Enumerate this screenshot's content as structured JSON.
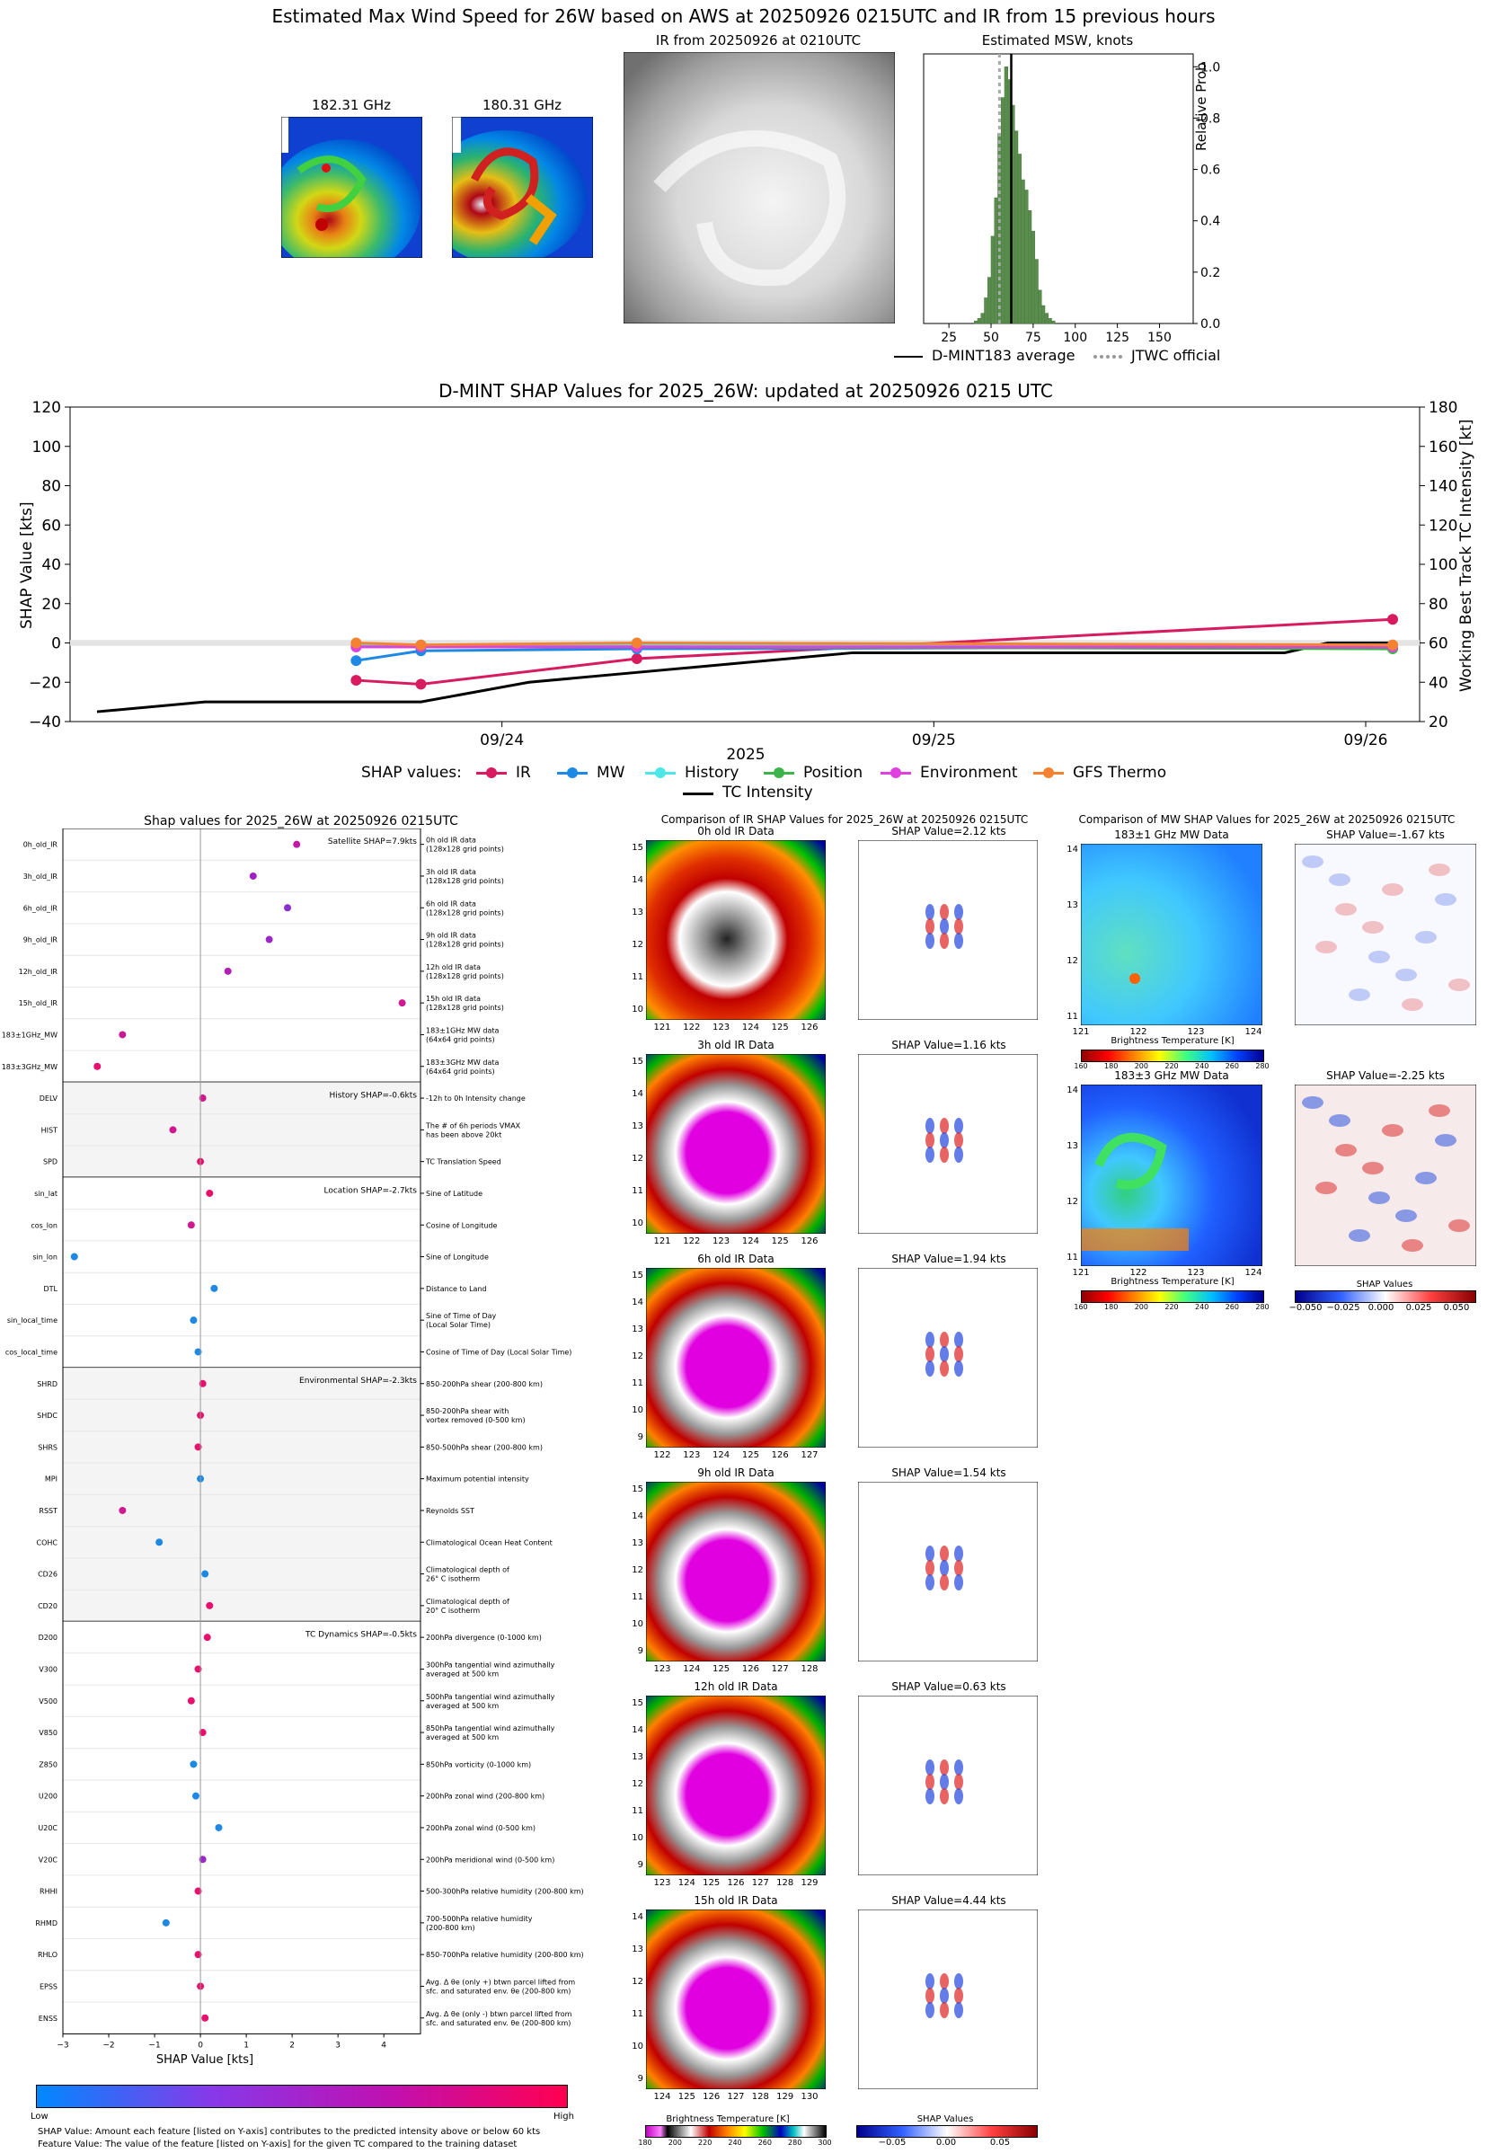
{
  "top": {
    "title": "Estimated Max Wind Speed for 26W based on AWS at 20250926 0215UTC and IR from 15 previous hours",
    "mw1_title": "182.31 GHz",
    "mw2_title": "180.31 GHz",
    "ir_title": "IR from 20250926 at 0210UTC",
    "hist_title": "Estimated MSW, knots",
    "hist_ylabel": "Relative Prob",
    "legend_avg": "D-MINT183 average",
    "legend_jtwc": "JTWC official"
  },
  "msw_hist": {
    "type": "bar",
    "xlim": [
      10,
      170
    ],
    "ylim": [
      0,
      1.05
    ],
    "xticks": [
      "25",
      "50",
      "75",
      "100",
      "125",
      "150"
    ],
    "yticks": [
      "0.0",
      "0.2",
      "0.4",
      "0.6",
      "0.8",
      "1.0"
    ],
    "bins": [
      40,
      42,
      44,
      46,
      48,
      50,
      52,
      54,
      56,
      58,
      60,
      62,
      64,
      66,
      68,
      70,
      72,
      74,
      76,
      78,
      80,
      82,
      84,
      86
    ],
    "values": [
      0.01,
      0.02,
      0.04,
      0.1,
      0.18,
      0.34,
      0.49,
      0.74,
      0.88,
      1.0,
      0.95,
      0.85,
      0.75,
      0.66,
      0.56,
      0.52,
      0.44,
      0.36,
      0.25,
      0.13,
      0.07,
      0.04,
      0.02,
      0.01
    ],
    "avg": 62,
    "jtwc": 55
  },
  "shap_ts": {
    "type": "line",
    "title": "D-MINT SHAP Values for 2025_26W: updated at 20250926 0215 UTC",
    "ylabel": "SHAP Value [kts]",
    "y2label": "Working Best Track TC Intensity [kt]",
    "xlabel": "2025",
    "ylim": [
      -40,
      120
    ],
    "y2lim": [
      20,
      180
    ],
    "yticks": [
      "120",
      "100",
      "80",
      "60",
      "40",
      "20",
      "0",
      "−20",
      "−40"
    ],
    "y2ticks": [
      "180",
      "160",
      "140",
      "120",
      "100",
      "80",
      "60",
      "40",
      "20"
    ],
    "xticks": [
      "09/24",
      "09/25",
      "09/26"
    ],
    "legend_prefix": "SHAP values:",
    "series": [
      {
        "name": "IR",
        "color": "#d81b60",
        "x": [
          0.6,
          0.75,
          1.25,
          3.0
        ],
        "values": [
          -19,
          -21,
          -8,
          12
        ]
      },
      {
        "name": "MW",
        "color": "#1e88e5",
        "x": [
          0.6,
          0.75,
          1.25,
          3.0
        ],
        "values": [
          -9,
          -4,
          -3,
          -2
        ]
      },
      {
        "name": "History",
        "color": "#4ce8e8",
        "x": [
          0.6,
          0.75,
          1.25,
          3.0
        ],
        "values": [
          -1,
          -1,
          -1,
          -1
        ]
      },
      {
        "name": "Position",
        "color": "#3cb44b",
        "x": [
          0.6,
          0.75,
          1.25,
          3.0
        ],
        "values": [
          -2,
          -2,
          -2,
          -3
        ]
      },
      {
        "name": "Environment",
        "color": "#e040e0",
        "x": [
          0.6,
          0.75,
          1.25,
          3.0
        ],
        "values": [
          -2,
          -2,
          -2,
          -2
        ]
      },
      {
        "name": "GFS Thermo",
        "color": "#f58231",
        "x": [
          0.6,
          0.75,
          1.25,
          3.0
        ],
        "values": [
          0,
          -1,
          0,
          -1
        ]
      }
    ],
    "intensity": {
      "name": "TC Intensity",
      "x": [
        0,
        0.25,
        0.5,
        0.75,
        1.0,
        1.25,
        1.5,
        1.75,
        2.0,
        2.25,
        2.5,
        2.75,
        2.85,
        3.0
      ],
      "values": [
        25,
        30,
        30,
        30,
        40,
        45,
        50,
        55,
        55,
        55,
        55,
        55,
        60,
        60
      ]
    }
  },
  "feat": {
    "title": "Shap values for 2025_26W at 20250926 0215UTC",
    "xlabel": "SHAP Value [kts]",
    "xlim": [
      -3,
      4.8
    ],
    "xticks": [
      "−3",
      "−2",
      "−1",
      "0",
      "1",
      "2",
      "3",
      "4"
    ],
    "colorbar_low": "Low",
    "colorbar_high": "High",
    "foot1": "SHAP Value: Amount each feature [listed on Y-axis] contributes to the predicted intensity above or below 60 kts",
    "foot2": "Feature Value: The value of the feature [listed on Y-axis] for the given TC compared to the training dataset",
    "groups": [
      {
        "label": "Satellite SHAP=7.9kts",
        "shade": false,
        "rows": [
          {
            "name": "0h_old_IR",
            "desc": "0h old IR data|(128x128 grid points)",
            "v": 2.1,
            "c": "#c218a8"
          },
          {
            "name": "3h_old_IR",
            "desc": "3h old IR data|(128x128 grid points)",
            "v": 1.15,
            "c": "#a020c0"
          },
          {
            "name": "6h_old_IR",
            "desc": "6h old IR data|(128x128 grid points)",
            "v": 1.9,
            "c": "#8a30cc"
          },
          {
            "name": "9h_old_IR",
            "desc": "9h old IR data|(128x128 grid points)",
            "v": 1.5,
            "c": "#9a28c4"
          },
          {
            "name": "12h_old_IR",
            "desc": "12h old IR data|(128x128 grid points)",
            "v": 0.6,
            "c": "#b020b4"
          },
          {
            "name": "15h_old_IR",
            "desc": "15h old IR data|(128x128 grid points)",
            "v": 4.4,
            "c": "#d01890"
          },
          {
            "name": "183±1GHz_MW",
            "desc": "183±1GHz MW data|(64x64 grid points)",
            "v": -1.7,
            "c": "#c81898"
          },
          {
            "name": "183±3GHz_MW",
            "desc": "183±3GHz MW data|(64x64 grid points)",
            "v": -2.25,
            "c": "#e8106c"
          }
        ]
      },
      {
        "label": "History SHAP=-0.6kts",
        "shade": true,
        "rows": [
          {
            "name": "DELV",
            "desc": "-12h to 0h Intensity change",
            "v": 0.05,
            "c": "#d01890"
          },
          {
            "name": "HIST",
            "desc": "The # of 6h periods VMAX|has been above 20kt",
            "v": -0.6,
            "c": "#d01890"
          },
          {
            "name": "SPD",
            "desc": "TC Translation Speed",
            "v": 0.0,
            "c": "#e8106c"
          }
        ]
      },
      {
        "label": "Location SHAP=-2.7kts",
        "shade": false,
        "rows": [
          {
            "name": "sin_lat",
            "desc": "Sine of Latitude",
            "v": 0.2,
            "c": "#e8106c"
          },
          {
            "name": "cos_lon",
            "desc": "Cosine of Longitude",
            "v": -0.2,
            "c": "#d01890"
          },
          {
            "name": "sin_lon",
            "desc": "Sine of Longitude",
            "v": -2.75,
            "c": "#1e88e5"
          },
          {
            "name": "DTL",
            "desc": "Distance to Land",
            "v": 0.3,
            "c": "#1e88e5"
          },
          {
            "name": "sin_local_time",
            "desc": "Sine of Time of Day|(Local Solar Time)",
            "v": -0.15,
            "c": "#1e88e5"
          },
          {
            "name": "cos_local_time",
            "desc": "Cosine of Time of Day (Local Solar Time)",
            "v": -0.05,
            "c": "#1e88e5"
          }
        ]
      },
      {
        "label": "Environmental SHAP=-2.3kts",
        "shade": true,
        "rows": [
          {
            "name": "SHRD",
            "desc": "850-200hPa shear (200-800 km)",
            "v": 0.05,
            "c": "#e8106c"
          },
          {
            "name": "SHDC",
            "desc": "850-200hPa shear with|vortex removed (0-500 km)",
            "v": 0.0,
            "c": "#e8106c"
          },
          {
            "name": "SHRS",
            "desc": "850-500hPa shear (200-800 km)",
            "v": -0.05,
            "c": "#e8106c"
          },
          {
            "name": "MPI",
            "desc": "Maximum potential intensity",
            "v": 0.0,
            "c": "#1e88e5"
          },
          {
            "name": "RSST",
            "desc": "Reynolds SST",
            "v": -1.7,
            "c": "#d01890"
          },
          {
            "name": "COHC",
            "desc": "Climatological Ocean Heat Content",
            "v": -0.9,
            "c": "#1e88e5"
          },
          {
            "name": "CD26",
            "desc": "Climatological depth of|26° C isotherm",
            "v": 0.1,
            "c": "#1e88e5"
          },
          {
            "name": "CD20",
            "desc": "Climatological depth of|20° C isotherm",
            "v": 0.2,
            "c": "#e8106c"
          }
        ]
      },
      {
        "label": "TC Dynamics SHAP=-0.5kts",
        "shade": false,
        "rows": [
          {
            "name": "D200",
            "desc": "200hPa divergence (0-1000 km)",
            "v": 0.15,
            "c": "#e8106c"
          },
          {
            "name": "V300",
            "desc": "300hPa tangential wind azimuthally|averaged at 500 km",
            "v": -0.05,
            "c": "#e8106c"
          },
          {
            "name": "V500",
            "desc": "500hPa tangential wind azimuthally|averaged at 500 km",
            "v": -0.2,
            "c": "#e8106c"
          },
          {
            "name": "V850",
            "desc": "850hPa tangential wind azimuthally|averaged at 500 km",
            "v": 0.05,
            "c": "#e8106c"
          },
          {
            "name": "Z850",
            "desc": "850hPa vorticity (0-1000 km)",
            "v": -0.15,
            "c": "#1e88e5"
          },
          {
            "name": "U200",
            "desc": "200hPa zonal wind (200-800 km)",
            "v": -0.1,
            "c": "#1e88e5"
          },
          {
            "name": "U20C",
            "desc": "200hPa zonal wind (0-500 km)",
            "v": 0.4,
            "c": "#1e88e5"
          },
          {
            "name": "V20C",
            "desc": "200hPa meridional wind (0-500 km)",
            "v": 0.05,
            "c": "#9a28c4"
          },
          {
            "name": "RHHI",
            "desc": "500-300hPa relative humidity (200-800 km)",
            "v": -0.05,
            "c": "#e8106c"
          },
          {
            "name": "RHMD",
            "desc": "700-500hPa relative humidity|(200-800 km)",
            "v": -0.75,
            "c": "#1e88e5"
          },
          {
            "name": "RHLO",
            "desc": "850-700hPa relative humidity (200-800 km)",
            "v": -0.05,
            "c": "#e8106c"
          },
          {
            "name": "EPSS",
            "desc": "Avg. Δ θe (only +) btwn parcel lifted from|sfc. and saturated env. θe (200-800 km)",
            "v": 0.0,
            "c": "#e8106c"
          },
          {
            "name": "ENSS",
            "desc": "Avg. Δ θe (only -) btwn parcel lifted from|sfc. and saturated env. θe (200-800 km)",
            "v": 0.1,
            "c": "#e8106c"
          }
        ]
      }
    ]
  },
  "ir_cmp": {
    "title": "Comparison of IR SHAP Values for 2025_26W at 20250926 0215UTC",
    "rows": [
      {
        "label": "0h old IR Data",
        "shap": "SHAP Value=2.12 kts",
        "yticks": [
          "15",
          "14",
          "13",
          "12",
          "11",
          "10"
        ],
        "xticks": [
          "121",
          "122",
          "123",
          "124",
          "125",
          "126"
        ],
        "eye": 0
      },
      {
        "label": "3h old IR Data",
        "shap": "SHAP Value=1.16 kts",
        "yticks": [
          "15",
          "14",
          "13",
          "12",
          "11",
          "10"
        ],
        "xticks": [
          "121",
          "122",
          "123",
          "124",
          "125",
          "126"
        ],
        "eye": 1
      },
      {
        "label": "6h old IR Data",
        "shap": "SHAP Value=1.94 kts",
        "yticks": [
          "15",
          "14",
          "13",
          "12",
          "11",
          "10",
          "9"
        ],
        "xticks": [
          "122",
          "123",
          "124",
          "125",
          "126",
          "127"
        ],
        "eye": 2
      },
      {
        "label": "9h old IR Data",
        "shap": "SHAP Value=1.54 kts",
        "yticks": [
          "15",
          "14",
          "13",
          "12",
          "11",
          "10",
          "9"
        ],
        "xticks": [
          "123",
          "124",
          "125",
          "126",
          "127",
          "128"
        ],
        "eye": 2
      },
      {
        "label": "12h old IR Data",
        "shap": "SHAP Value=0.63 kts",
        "yticks": [
          "15",
          "14",
          "13",
          "12",
          "11",
          "10",
          "9"
        ],
        "xticks": [
          "123",
          "124",
          "125",
          "126",
          "127",
          "128",
          "129"
        ],
        "eye": 2
      },
      {
        "label": "15h old IR Data",
        "shap": "SHAP Value=4.44 kts",
        "yticks": [
          "14",
          "13",
          "12",
          "11",
          "10",
          "9"
        ],
        "xticks": [
          "124",
          "125",
          "126",
          "127",
          "128",
          "129",
          "130"
        ],
        "eye": 2
      }
    ],
    "cbar_title": "Brightness Temperature [K]",
    "cbar_ticks": [
      "180",
      "200",
      "220",
      "240",
      "260",
      "280",
      "300"
    ],
    "shap_cbar_title": "SHAP Values",
    "shap_cbar_ticks": [
      "−0.05",
      "0.00",
      "0.05"
    ]
  },
  "mw_cmp": {
    "title": "Comparison of MW SHAP Values for 2025_26W at 20250926 0215UTC",
    "rows": [
      {
        "label": "183±1 GHz MW Data",
        "shap": "SHAP Value=-1.67 kts",
        "yticks": [
          "14",
          "13",
          "12",
          "11"
        ],
        "xticks": [
          "121",
          "122",
          "123",
          "124"
        ]
      },
      {
        "label": "183±3 GHz MW Data",
        "shap": "SHAP Value=-2.25 kts",
        "yticks": [
          "14",
          "13",
          "12",
          "11"
        ],
        "xticks": [
          "121",
          "122",
          "123",
          "124"
        ]
      }
    ],
    "cbar_title": "Brightness Temperature [K]",
    "cbar_ticks": [
      "160",
      "180",
      "200",
      "220",
      "240",
      "260",
      "280"
    ],
    "shap_cbar_title": "SHAP Values",
    "shap_cbar_ticks": [
      "−0.050",
      "−0.025",
      "0.000",
      "0.025",
      "0.050"
    ]
  }
}
